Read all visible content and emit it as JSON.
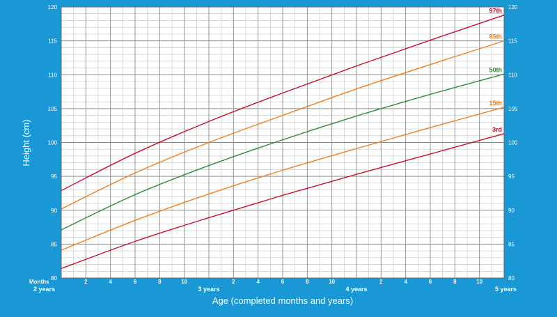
{
  "chart_data": {
    "type": "line",
    "title": "",
    "ylabel": "Height (cm)",
    "xlabel": "Age (completed months and years)",
    "x_unit_label": "Months",
    "xlim": [
      24,
      60
    ],
    "ylim": [
      80,
      120
    ],
    "grid": true,
    "legend_placement": "right (series labels at line ends)",
    "y_ticks": [
      80,
      85,
      90,
      95,
      100,
      105,
      110,
      115,
      120
    ],
    "x_ticks": [
      {
        "x": 24,
        "label": "2 years"
      },
      {
        "x": 26,
        "label": "2"
      },
      {
        "x": 28,
        "label": "4"
      },
      {
        "x": 30,
        "label": "6"
      },
      {
        "x": 32,
        "label": "8"
      },
      {
        "x": 34,
        "label": "10"
      },
      {
        "x": 36,
        "label": "3 years"
      },
      {
        "x": 38,
        "label": "2"
      },
      {
        "x": 40,
        "label": "4"
      },
      {
        "x": 42,
        "label": "6"
      },
      {
        "x": 44,
        "label": "8"
      },
      {
        "x": 46,
        "label": "10"
      },
      {
        "x": 48,
        "label": "4 years"
      },
      {
        "x": 50,
        "label": "2"
      },
      {
        "x": 52,
        "label": "4"
      },
      {
        "x": 54,
        "label": "6"
      },
      {
        "x": 56,
        "label": "8"
      },
      {
        "x": 58,
        "label": "10"
      },
      {
        "x": 60,
        "label": "5 years"
      }
    ],
    "x": [
      24,
      30,
      36,
      42,
      48,
      54,
      60
    ],
    "series": [
      {
        "name": "97th",
        "color": "#c8102e",
        "values": [
          92.9,
          98.4,
          103.1,
          107.3,
          111.3,
          115.1,
          118.8
        ]
      },
      {
        "name": "85th",
        "color": "#f07f1e",
        "values": [
          90.2,
          95.5,
          100.0,
          104.0,
          107.9,
          111.5,
          115.0
        ]
      },
      {
        "name": "50th",
        "color": "#2e8b3a",
        "values": [
          87.1,
          92.3,
          96.6,
          100.4,
          103.9,
          107.1,
          110.1
        ]
      },
      {
        "name": "15th",
        "color": "#f07f1e",
        "values": [
          84.1,
          88.5,
          92.4,
          95.9,
          99.1,
          102.2,
          105.2
        ]
      },
      {
        "name": "3rd",
        "color": "#c8102e",
        "values": [
          81.4,
          85.4,
          88.9,
          92.2,
          95.3,
          98.3,
          101.3
        ]
      }
    ]
  }
}
